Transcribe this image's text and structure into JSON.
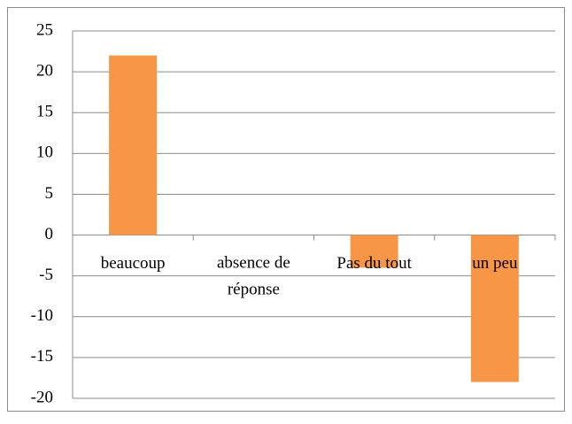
{
  "chart_data": {
    "type": "bar",
    "categories": [
      "beaucoup",
      "absence de réponse",
      "Pas du tout",
      "un peu"
    ],
    "values": [
      22,
      0,
      -4,
      -18
    ],
    "color": "#f79646",
    "ylim": [
      -20,
      25
    ],
    "yticks": [
      -20,
      -15,
      -10,
      -5,
      0,
      5,
      10,
      15,
      20,
      25
    ],
    "grid": true
  }
}
